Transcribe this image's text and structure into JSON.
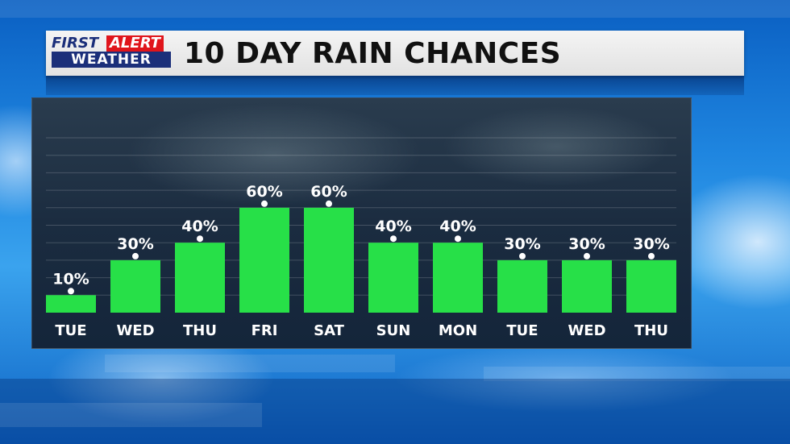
{
  "header": {
    "logo_first": "FIRST",
    "logo_alert": "ALERT",
    "logo_weather": "WEATHER",
    "title": "10 DAY RAIN CHANCES"
  },
  "colors": {
    "bar": "#27e048",
    "logo_red": "#e0151b",
    "logo_navy": "#1b2f7a"
  },
  "chart_data": {
    "type": "bar",
    "title": "10 DAY RAIN CHANCES",
    "categories": [
      "TUE",
      "WED",
      "THU",
      "FRI",
      "SAT",
      "SUN",
      "MON",
      "TUE",
      "WED",
      "THU"
    ],
    "values": [
      10,
      30,
      40,
      60,
      60,
      40,
      40,
      30,
      30,
      30
    ],
    "value_labels": [
      "10%",
      "30%",
      "40%",
      "60%",
      "60%",
      "40%",
      "40%",
      "30%",
      "30%",
      "30%"
    ],
    "unit": "%",
    "ylim": [
      0,
      100
    ],
    "grid": true,
    "xlabel": "",
    "ylabel": ""
  }
}
